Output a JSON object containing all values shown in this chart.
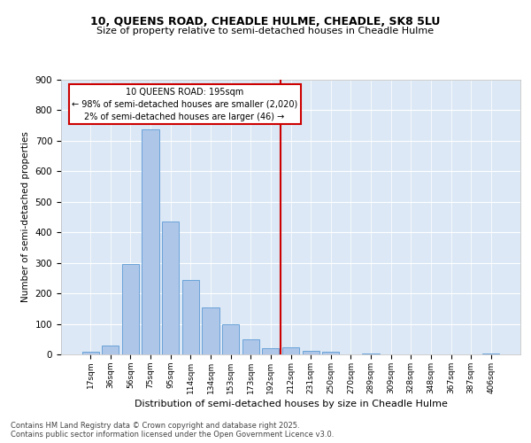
{
  "title1": "10, QUEENS ROAD, CHEADLE HULME, CHEADLE, SK8 5LU",
  "title2": "Size of property relative to semi-detached houses in Cheadle Hulme",
  "xlabel": "Distribution of semi-detached houses by size in Cheadle Hulme",
  "ylabel": "Number of semi-detached properties",
  "categories": [
    "17sqm",
    "36sqm",
    "56sqm",
    "75sqm",
    "95sqm",
    "114sqm",
    "134sqm",
    "153sqm",
    "173sqm",
    "192sqm",
    "212sqm",
    "231sqm",
    "250sqm",
    "270sqm",
    "289sqm",
    "309sqm",
    "328sqm",
    "348sqm",
    "367sqm",
    "387sqm",
    "406sqm"
  ],
  "values": [
    8,
    28,
    295,
    738,
    435,
    245,
    155,
    98,
    48,
    20,
    22,
    12,
    8,
    0,
    2,
    0,
    0,
    0,
    0,
    0,
    2
  ],
  "bar_color": "#aec6e8",
  "bar_edgecolor": "#5b9bd5",
  "vline_color": "#cc0000",
  "annotation_text": "10 QUEENS ROAD: 195sqm\n← 98% of semi-detached houses are smaller (2,020)\n2% of semi-detached houses are larger (46) →",
  "ylim": [
    0,
    900
  ],
  "yticks": [
    0,
    100,
    200,
    300,
    400,
    500,
    600,
    700,
    800,
    900
  ],
  "background_color": "#dce8f5",
  "footer": "Contains HM Land Registry data © Crown copyright and database right 2025.\nContains public sector information licensed under the Open Government Licence v3.0.",
  "title1_fontsize": 9,
  "title2_fontsize": 8,
  "grid_color": "#ffffff"
}
